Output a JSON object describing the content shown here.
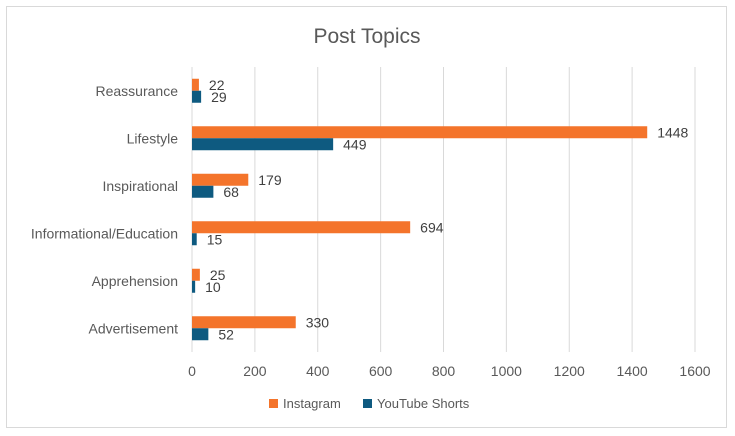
{
  "chart_data": {
    "type": "bar",
    "orientation": "horizontal",
    "title": "Post Topics",
    "categories": [
      "Reassurance",
      "Lifestyle",
      "Inspirational",
      "Informational/Education",
      "Apprehension",
      "Advertisement"
    ],
    "series": [
      {
        "name": "Instagram",
        "color": "#F4742B",
        "values": [
          22,
          1448,
          179,
          694,
          25,
          330
        ]
      },
      {
        "name": "YouTube Shorts",
        "color": "#0E5A80",
        "values": [
          29,
          449,
          68,
          15,
          10,
          52
        ]
      }
    ],
    "xlim": [
      0,
      1600
    ],
    "xticks": [
      0,
      200,
      400,
      600,
      800,
      1000,
      1200,
      1400,
      1600
    ],
    "grid": "vertical",
    "legend_position": "bottom",
    "data_labels": true
  }
}
